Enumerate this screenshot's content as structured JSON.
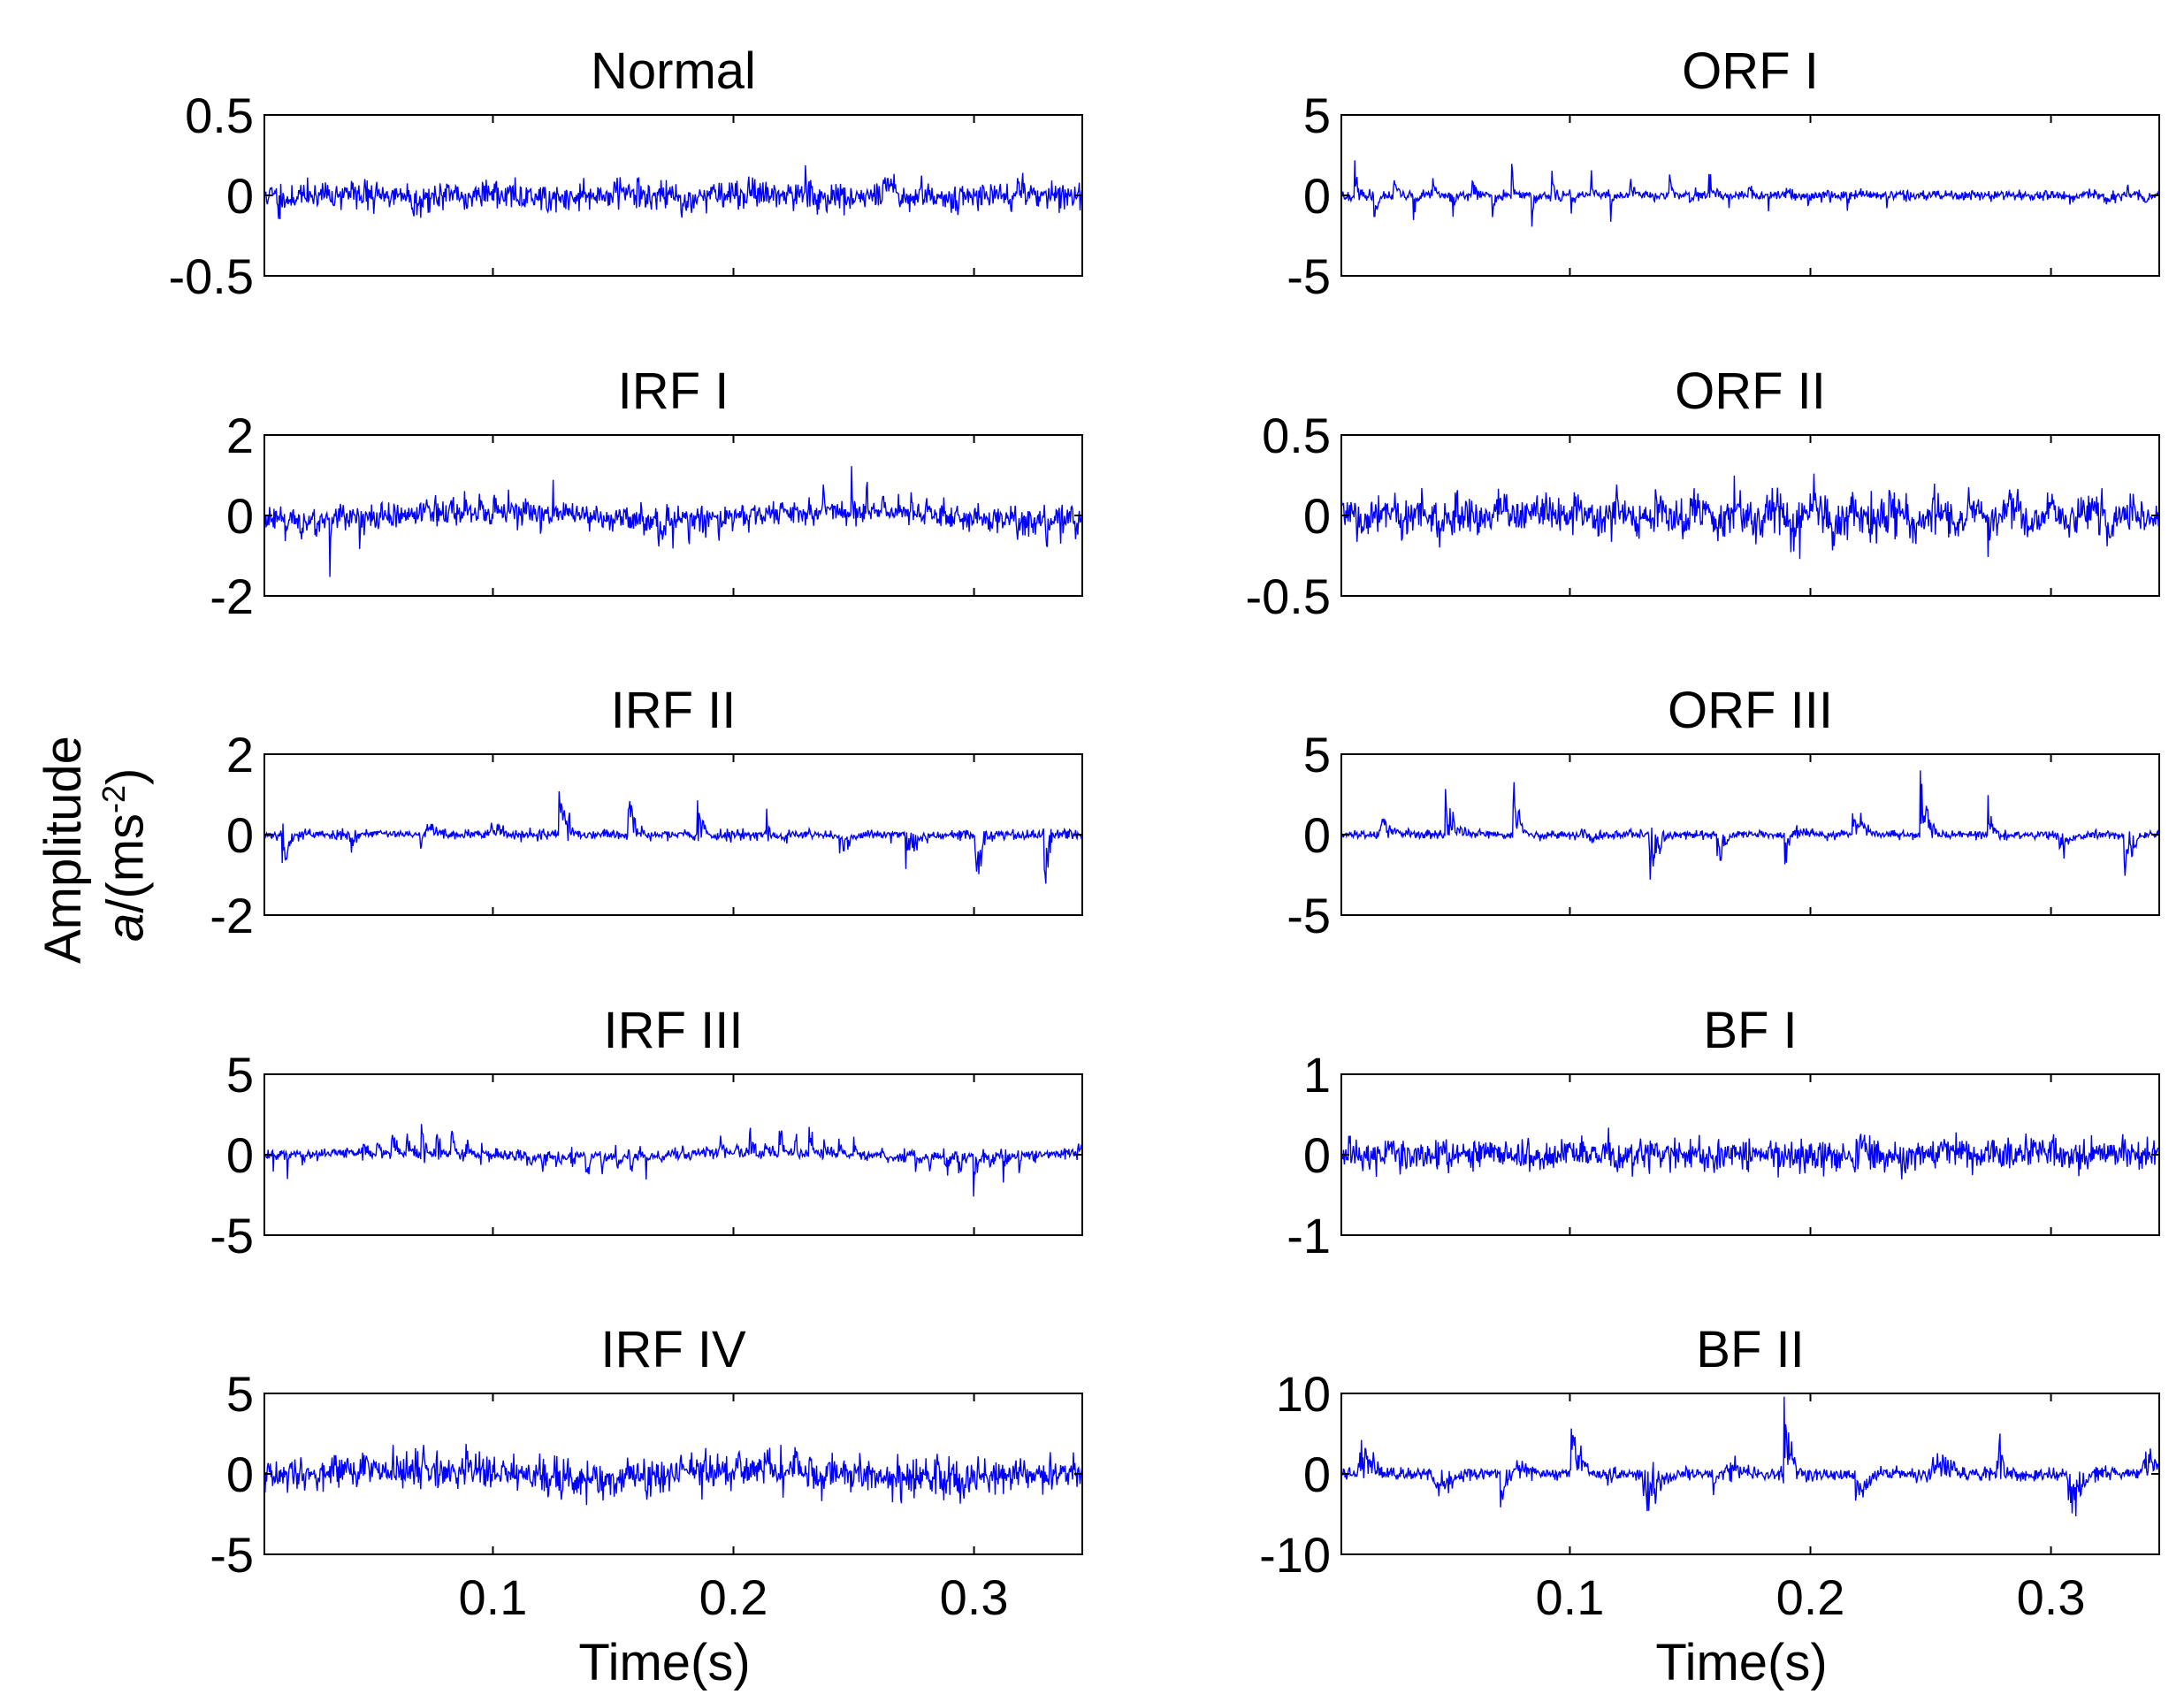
{
  "figure": {
    "ylabel_line1": "Amplitude",
    "ylabel_line2_italic": "a",
    "ylabel_line2_open": "/(ms",
    "ylabel_line2_sup": "-2",
    "ylabel_line2_close": ")",
    "xlabel": "Time(s)",
    "line_color": "#0000ff",
    "axis_color": "#000000"
  },
  "chart_data": [
    {
      "type": "line",
      "title": "Normal",
      "xlabel": "",
      "ylabel": "",
      "xlim": [
        0.005,
        0.345
      ],
      "ylim": [
        -0.5,
        0.5
      ],
      "yticks": [
        "-0.5",
        "0",
        "0.5"
      ],
      "xticks": [
        "0.1",
        "0.2",
        "0.3"
      ],
      "signal": {
        "base": 0.09,
        "impulse": 0.12,
        "period": 0.028,
        "phase": 0.01,
        "decay": 0.004,
        "seed": 11
      },
      "series": [
        {
          "name": "Normal",
          "values": []
        }
      ]
    },
    {
      "type": "line",
      "title": "ORF I",
      "xlabel": "",
      "ylabel": "",
      "xlim": [
        0.005,
        0.345
      ],
      "ylim": [
        -5,
        5
      ],
      "yticks": [
        "-5",
        "0",
        "5"
      ],
      "xticks": [
        "0.1",
        "0.2",
        "0.3"
      ],
      "signal": {
        "base": 0.35,
        "impulse": 2.6,
        "period": 0.0082,
        "phase": 0.002,
        "decay": 0.0015,
        "seed": 23
      },
      "series": [
        {
          "name": "ORF I",
          "values": []
        }
      ]
    },
    {
      "type": "line",
      "title": "IRF I",
      "xlabel": "",
      "ylabel": "",
      "xlim": [
        0.005,
        0.345
      ],
      "ylim": [
        -2,
        2
      ],
      "yticks": [
        "-2",
        "0",
        "2"
      ],
      "xticks": [
        "0.1",
        "0.2",
        "0.3"
      ],
      "signal": {
        "base": 0.32,
        "impulse": 0.9,
        "period": 0.0062,
        "phase": 0.001,
        "decay": 0.002,
        "seed": 37
      },
      "series": [
        {
          "name": "IRF I",
          "values": []
        }
      ]
    },
    {
      "type": "line",
      "title": "ORF II",
      "xlabel": "",
      "ylabel": "",
      "xlim": [
        0.005,
        0.345
      ],
      "ylim": [
        -0.5,
        0.5
      ],
      "yticks": [
        "-0.5",
        "0",
        "0.5"
      ],
      "xticks": [
        "0.1",
        "0.2",
        "0.3"
      ],
      "signal": {
        "base": 0.13,
        "impulse": 0.16,
        "period": 0.0082,
        "phase": 0.003,
        "decay": 0.004,
        "seed": 41
      },
      "series": [
        {
          "name": "ORF II",
          "values": []
        }
      ]
    },
    {
      "type": "line",
      "title": "IRF II",
      "xlabel": "",
      "ylabel": "",
      "xlim": [
        0.005,
        0.345
      ],
      "ylim": [
        -2,
        2
      ],
      "yticks": [
        "-2",
        "0",
        "2"
      ],
      "xticks": [
        "0.1",
        "0.2",
        "0.3"
      ],
      "signal": {
        "base": 0.14,
        "impulse": 1.5,
        "period": 0.0288,
        "phase": 0.041,
        "decay": 0.003,
        "seed": 53
      },
      "series": [
        {
          "name": "IRF II",
          "values": []
        }
      ]
    },
    {
      "type": "line",
      "title": "ORF III",
      "xlabel": "",
      "ylabel": "",
      "xlim": [
        0.005,
        0.345
      ],
      "ylim": [
        -5,
        5
      ],
      "yticks": [
        "-5",
        "0",
        "5"
      ],
      "xticks": [
        "0.1",
        "0.2",
        "0.3"
      ],
      "signal": {
        "base": 0.28,
        "impulse": 4.4,
        "period": 0.0282,
        "phase": 0.02,
        "decay": 0.003,
        "seed": 67
      },
      "series": [
        {
          "name": "ORF III",
          "values": []
        }
      ]
    },
    {
      "type": "line",
      "title": "IRF III",
      "xlabel": "",
      "ylabel": "",
      "xlim": [
        0.005,
        0.345
      ],
      "ylim": [
        -5,
        5
      ],
      "yticks": [
        "-5",
        "0",
        "5"
      ],
      "xticks": [
        "0.1",
        "0.2",
        "0.3"
      ],
      "signal": {
        "base": 0.35,
        "impulse": 2.2,
        "period": 0.0062,
        "phase": 0.002,
        "decay": 0.0018,
        "seed": 71
      },
      "series": [
        {
          "name": "IRF III",
          "values": []
        }
      ]
    },
    {
      "type": "line",
      "title": "BF I",
      "xlabel": "",
      "ylabel": "",
      "xlim": [
        0.005,
        0.345
      ],
      "ylim": [
        -1,
        1
      ],
      "yticks": [
        "-1",
        "0",
        "1"
      ],
      "xticks": [
        "0.1",
        "0.2",
        "0.3"
      ],
      "signal": {
        "base": 0.22,
        "impulse": 0.22,
        "period": 0.034,
        "phase": 0.015,
        "decay": 0.008,
        "seed": 83
      },
      "series": [
        {
          "name": "BF I",
          "values": []
        }
      ]
    },
    {
      "type": "line",
      "title": "IRF IV",
      "xlabel": "Time(s)",
      "ylabel": "",
      "xlim": [
        0.005,
        0.345
      ],
      "ylim": [
        -5,
        5
      ],
      "yticks": [
        "-5",
        "0",
        "5"
      ],
      "xticks": [
        "0.1",
        "0.2",
        "0.3"
      ],
      "signal": {
        "base": 1.2,
        "impulse": 1.6,
        "period": 0.0062,
        "phase": 0.002,
        "decay": 0.0025,
        "seed": 97
      },
      "series": [
        {
          "name": "IRF IV",
          "values": []
        }
      ]
    },
    {
      "type": "line",
      "title": "BF II",
      "xlabel": "Time(s)",
      "ylabel": "",
      "xlim": [
        0.005,
        0.345
      ],
      "ylim": [
        -10,
        10
      ],
      "yticks": [
        "-10",
        "0",
        "10"
      ],
      "xticks": [
        "0.1",
        "0.2",
        "0.3"
      ],
      "signal": {
        "base": 0.9,
        "impulse": 7.0,
        "period": 0.0295,
        "phase": 0.012,
        "decay": 0.006,
        "seed": 101
      },
      "series": [
        {
          "name": "BF II",
          "values": []
        }
      ]
    }
  ]
}
